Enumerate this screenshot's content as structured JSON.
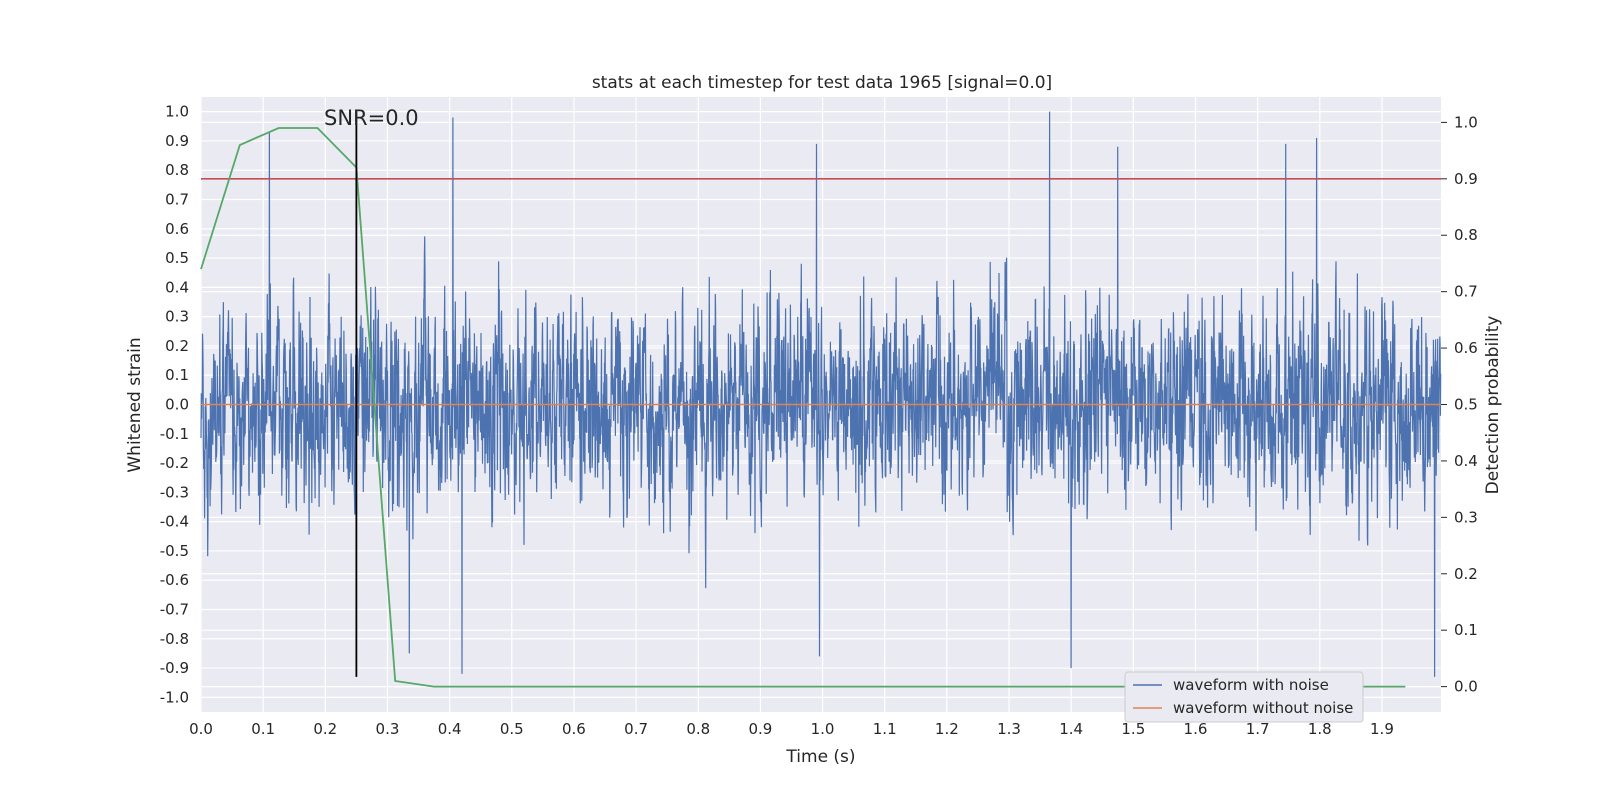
{
  "chart_data": {
    "type": "line",
    "title": "stats at each timestep for test data 1965 [signal=0.0]",
    "xlabel": "Time (s)",
    "ylabel": "Whitened strain",
    "y2label": "Detection probability",
    "xlim": [
      0.0,
      1.995
    ],
    "ylim": [
      -1.05,
      1.05
    ],
    "y2lim": [
      -0.045,
      1.045
    ],
    "xticks": [
      "0.0",
      "0.1",
      "0.2",
      "0.3",
      "0.4",
      "0.5",
      "0.6",
      "0.7",
      "0.8",
      "0.9",
      "1.0",
      "1.1",
      "1.2",
      "1.3",
      "1.4",
      "1.5",
      "1.6",
      "1.7",
      "1.8",
      "1.9"
    ],
    "yticks": [
      "1.0",
      "0.9",
      "0.8",
      "0.7",
      "0.6",
      "0.5",
      "0.4",
      "0.3",
      "0.2",
      "0.1",
      "0.0",
      "-0.1",
      "-0.2",
      "-0.3",
      "-0.4",
      "-0.5",
      "-0.6",
      "-0.7",
      "-0.8",
      "-0.9",
      "-1.0"
    ],
    "y2ticks": [
      "1.0",
      "0.9",
      "0.8",
      "0.7",
      "0.6",
      "0.5",
      "0.4",
      "0.3",
      "0.2",
      "0.1",
      "0.0"
    ],
    "grid": true,
    "legend_position": "lower-right",
    "series": [
      {
        "name": "waveform with noise",
        "color": "#4c72b0",
        "axis": "left",
        "note": "dense noise signal, amplitude roughly within [-0.93, 1.0]",
        "range": [
          -0.93,
          1.0
        ],
        "peaks": [
          {
            "x": 0.11,
            "y": 0.93
          },
          {
            "x": 0.405,
            "y": 0.98
          },
          {
            "x": 0.99,
            "y": 0.89
          },
          {
            "x": 1.365,
            "y": 1.0
          },
          {
            "x": 1.475,
            "y": 0.88
          },
          {
            "x": 1.745,
            "y": 0.89
          },
          {
            "x": 1.795,
            "y": 0.91
          },
          {
            "x": 0.42,
            "y": -0.92
          },
          {
            "x": 1.4,
            "y": -0.9
          },
          {
            "x": 1.985,
            "y": -0.93
          },
          {
            "x": 0.995,
            "y": -0.86
          },
          {
            "x": 0.335,
            "y": -0.85
          }
        ]
      },
      {
        "name": "waveform without noise",
        "color": "#dd8452",
        "axis": "left",
        "x": [
          0.0,
          1.995
        ],
        "y": [
          0.0,
          0.0
        ]
      },
      {
        "name": "",
        "color": "#55a868",
        "axis": "right",
        "x": [
          0.0,
          0.0625,
          0.125,
          0.1875,
          0.25,
          0.3125,
          0.375,
          0.4375,
          1.9375
        ],
        "y": [
          0.74,
          0.96,
          0.99,
          0.99,
          0.92,
          0.01,
          0.0,
          0.0,
          0.0
        ]
      }
    ],
    "threshold": {
      "axis": "right",
      "value": 0.9,
      "color": "#c44e52"
    },
    "vline": {
      "x": 0.25,
      "y_from": -0.93,
      "y_to": 1.0,
      "color": "#000000"
    },
    "annotation": {
      "text": "SNR=0.0",
      "x": 0.2,
      "y": 1.0
    }
  }
}
